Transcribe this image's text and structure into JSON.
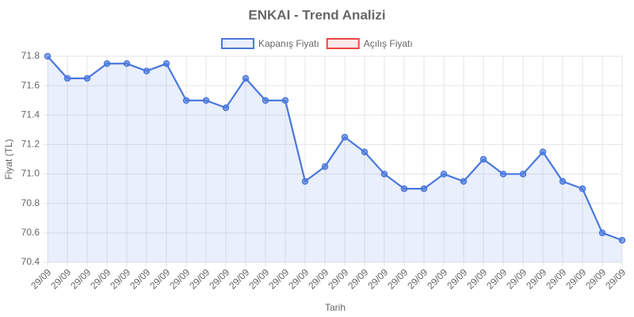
{
  "chart_data": {
    "type": "line",
    "title": "ENKAI - Trend Analizi",
    "x_label": "Tarih",
    "y_label": "Fiyat (TL)",
    "categories": [
      "29/09",
      "29/09",
      "29/09",
      "29/09",
      "29/09",
      "29/09",
      "29/09",
      "29/09",
      "29/09",
      "29/09",
      "29/09",
      "29/09",
      "29/09",
      "29/09",
      "29/09",
      "29/09",
      "29/09",
      "29/09",
      "29/09",
      "29/09",
      "29/09",
      "29/09",
      "29/09",
      "29/09",
      "29/09",
      "29/09",
      "29/09",
      "29/09",
      "29/09",
      "29/09"
    ],
    "series": [
      {
        "name": "Kapanış Fiyatı",
        "color": "#4a78dc",
        "fill": true,
        "values": [
          71.8,
          71.65,
          71.65,
          71.75,
          71.75,
          71.7,
          71.75,
          71.5,
          71.5,
          71.45,
          71.65,
          71.5,
          71.5,
          70.95,
          71.05,
          71.25,
          71.15,
          71.0,
          70.9,
          70.9,
          71.0,
          70.95,
          71.1,
          71.0,
          71.0,
          71.15,
          70.95,
          70.9,
          70.6,
          70.55
        ]
      },
      {
        "name": "Açılış Fiyatı",
        "color": "#ef4444",
        "fill": false,
        "values": [
          null,
          null,
          null,
          null,
          null,
          null,
          null,
          null,
          null,
          null,
          null,
          null,
          null,
          null,
          null,
          null,
          null,
          null,
          null,
          null,
          null,
          null,
          null,
          null,
          null,
          null,
          null,
          null,
          null,
          null
        ]
      }
    ],
    "ylim": [
      70.4,
      71.8
    ],
    "yticks": [
      70.4,
      70.6,
      70.8,
      {
        "value": 71.0,
        "label": "71.0"
      },
      71.2,
      71.4,
      71.6,
      71.8
    ],
    "grid": true
  }
}
